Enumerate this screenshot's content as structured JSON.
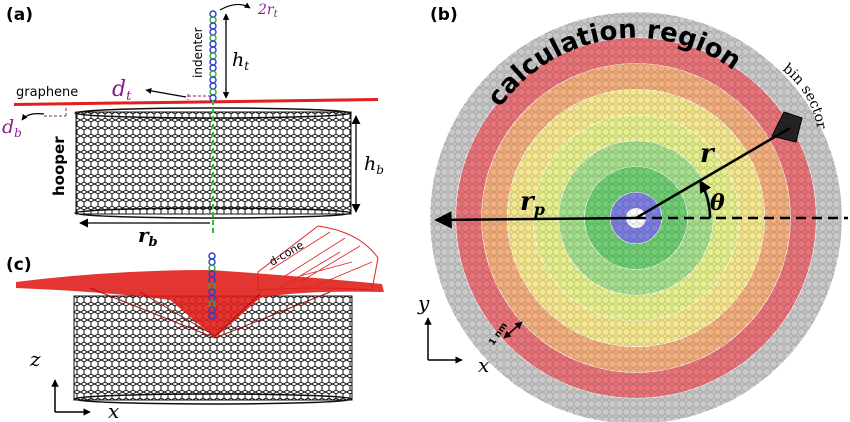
{
  "panel_a": {
    "label": "(a)",
    "indenter": "indenter",
    "graphene": "graphene",
    "hooper": "hooper",
    "two_r_t": "2r",
    "two_r_t_sub": "t",
    "h_t": "h",
    "h_t_sub": "t",
    "d_t": "d",
    "d_t_sub": "t",
    "d_b": "d",
    "d_b_sub": "b",
    "h_b": "h",
    "h_b_sub": "b",
    "r_b": "r",
    "r_b_sub": "b"
  },
  "panel_b": {
    "label": "(b)",
    "calculation_region": "calculation region",
    "bin_sector": "bin sector",
    "r": "r",
    "r_p": "r",
    "r_p_sub": "p",
    "theta": "θ",
    "axis_y": "y",
    "axis_x": "x",
    "scale_bar": "1 nm",
    "ring_colors": [
      "#c9c9c9",
      "#e8747a",
      "#f3b07e",
      "#f5e890",
      "#e6f08e",
      "#a6e08f",
      "#6fce73",
      "#7f7fe0"
    ]
  },
  "panel_c": {
    "label": "(c)",
    "d_cone": "d-cone",
    "axis_z": "z",
    "axis_x": "x"
  },
  "colors": {
    "graphene_red": "#e0201c",
    "hooper_black": "#111111",
    "indenter_blue": "#2b3bd6",
    "dim_green": "#2fae2f",
    "label_purple": "#8a1f8a",
    "dash_green": "#33bb33"
  }
}
